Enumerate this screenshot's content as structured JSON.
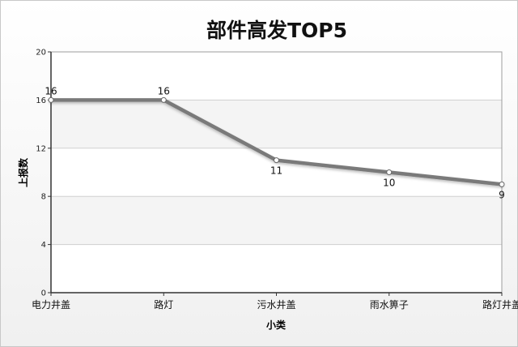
{
  "chart_data": {
    "type": "line",
    "title": "部件高发TOP5",
    "xlabel": "小类",
    "ylabel": "上报数",
    "categories": [
      "电力井盖",
      "路灯",
      "污水井盖",
      "雨水箅子",
      "路灯井盖"
    ],
    "series": [
      {
        "values": [
          16,
          16,
          11,
          10,
          9
        ]
      }
    ],
    "ylim": [
      0,
      20
    ],
    "yticks": [
      0,
      4,
      8,
      12,
      16,
      20
    ],
    "data_labels": [
      "16",
      "16",
      "11",
      "10",
      "9"
    ],
    "grid": true,
    "legend": "none",
    "colors": {
      "line": "#7a7a7a",
      "band": "#f4f4f4",
      "frame": "#9e9e9e",
      "gridline": "#d0d0d0"
    }
  }
}
